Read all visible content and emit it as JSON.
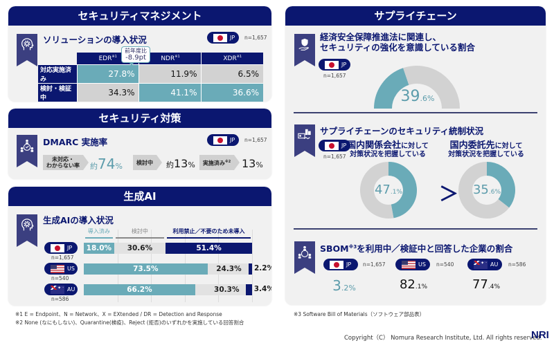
{
  "colors": {
    "navy": "#0b1770",
    "teal": "#6aabb8",
    "gray": "#d2d2d2",
    "light_gray": "#e2e2e2"
  },
  "security_management": {
    "header": "セキュリティマネジメント",
    "title": "ソリューションの導入状況",
    "country": "JP",
    "n": "n=1,657",
    "columns": [
      "EDR",
      "NDR",
      "XDR"
    ],
    "column_note": "※1",
    "callout_line1": "前年度比",
    "callout_line2": "-8.9pt",
    "rows": [
      {
        "label": "対応実施済み",
        "values": [
          "27.8%",
          "11.9%",
          "6.5%"
        ]
      },
      {
        "label": "検討・検証中",
        "values": [
          "34.3%",
          "41.1%",
          "36.6%"
        ]
      }
    ]
  },
  "security_measures": {
    "header": "セキュリティ対策",
    "title": "DMARC 実施率",
    "country": "JP",
    "n": "n=1,657",
    "items": [
      {
        "label": "未対応・わからない率",
        "label_l1": "未対応・",
        "label_l2": "わからない率",
        "prefix": "約",
        "value": "74",
        "unit": "%"
      },
      {
        "label": "検討中",
        "prefix": "約",
        "value": "13",
        "unit": "%"
      },
      {
        "label": "実施済み",
        "note": "※2",
        "prefix": "",
        "value": "13",
        "unit": "%"
      }
    ]
  },
  "generative_ai": {
    "header": "生成AI",
    "title": "生成AIの導入状況",
    "legend": [
      "導入済み",
      "検討中",
      "利用禁止／不要のため未導入"
    ],
    "rows": [
      {
        "country": "JP",
        "n": "n=1,657",
        "adopted": 18.0,
        "considering": 30.6,
        "not_adopted": 51.4,
        "labels": [
          "18.0%",
          "30.6%",
          "51.4%"
        ]
      },
      {
        "country": "US",
        "n": "n=540",
        "adopted": 73.5,
        "considering": 24.3,
        "not_adopted": 2.2,
        "labels": [
          "73.5%",
          "24.3%",
          "2.2%"
        ]
      },
      {
        "country": "AU",
        "n": "n=586",
        "adopted": 66.2,
        "considering": 30.3,
        "not_adopted": 3.4,
        "labels": [
          "66.2%",
          "30.3%",
          "3.4%"
        ]
      }
    ]
  },
  "footnotes_left": [
    "※1 E = Endpoint、N = Network、X = EXtended / DR = Detection and Response",
    "※2 None (なにもしない)、Quarantine(検疫)、Reject (拒否)のいずれかを実施している回答割合"
  ],
  "supply_chain": {
    "header": "サプライチェーン",
    "economic": {
      "title_l1": "経済安全保障推進法に関連し、",
      "title_l2": "セキュリティの強化を意識している割合",
      "country": "JP",
      "n": "n=1,657",
      "value": 39.6,
      "value_int": "39",
      "value_dec": ".6%"
    },
    "governance": {
      "title": "サプライチェーンのセキュリティ統制状況",
      "country": "JP",
      "n": "n=1,657",
      "donuts": [
        {
          "title_strong": "国内関係会社",
          "title_rest": "に対して",
          "title_l2": "対策状況を把握している",
          "value": 47.1,
          "value_int": "47",
          "value_dec": ".1%"
        },
        {
          "title_strong": "国内委託先",
          "title_rest": "に対して",
          "title_l2": "対策状況を把握している",
          "value": 35.6,
          "value_int": "35",
          "value_dec": ".6%"
        }
      ],
      "comparison": "＞"
    },
    "sbom": {
      "title_pre": "SBOM",
      "title_note": "※3",
      "title_post": "を利用中／検証中と回答した企業の割合",
      "items": [
        {
          "country": "JP",
          "n": "n=1,657",
          "value_int": "3",
          "value_dec": ".2%"
        },
        {
          "country": "US",
          "n": "n=540",
          "value_int": "82",
          "value_dec": ".1%"
        },
        {
          "country": "AU",
          "n": "n=586",
          "value_int": "77",
          "value_dec": ".4%"
        }
      ]
    }
  },
  "footnote_right": "※3 Software Bill of Materials（ソフトウェア部品表）",
  "copyright": "Copyright（C） Nomura Research Institute, Ltd. All rights reserved.",
  "logo": "NRI"
}
